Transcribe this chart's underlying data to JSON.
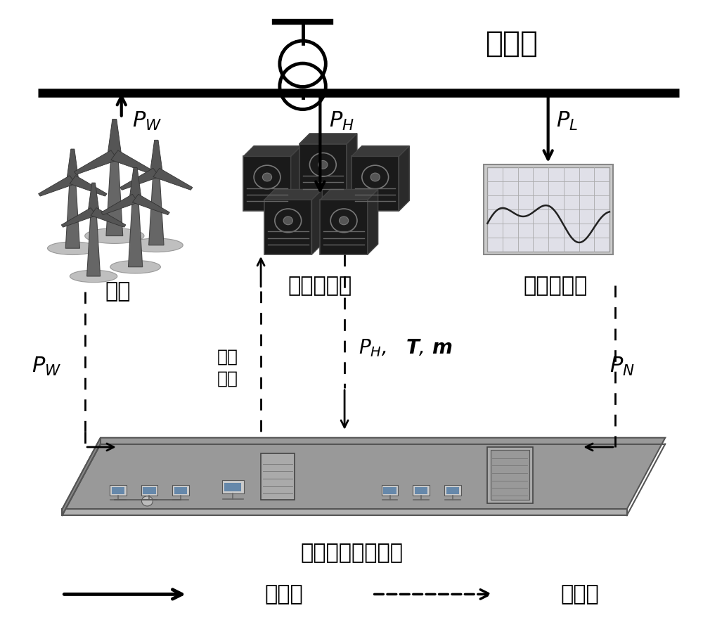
{
  "bg_color": "#ffffff",
  "title_text": "配电网",
  "wind_label": "风机",
  "heat_pump_label": "电热泵负荷",
  "uncontrol_label": "不可控负荷",
  "dr_label": "需求响应控制系统",
  "control_signal_line1": "控制",
  "control_signal_line2": "信号",
  "legend_power_flow": "功率流",
  "legend_signal_flow": "信号流"
}
